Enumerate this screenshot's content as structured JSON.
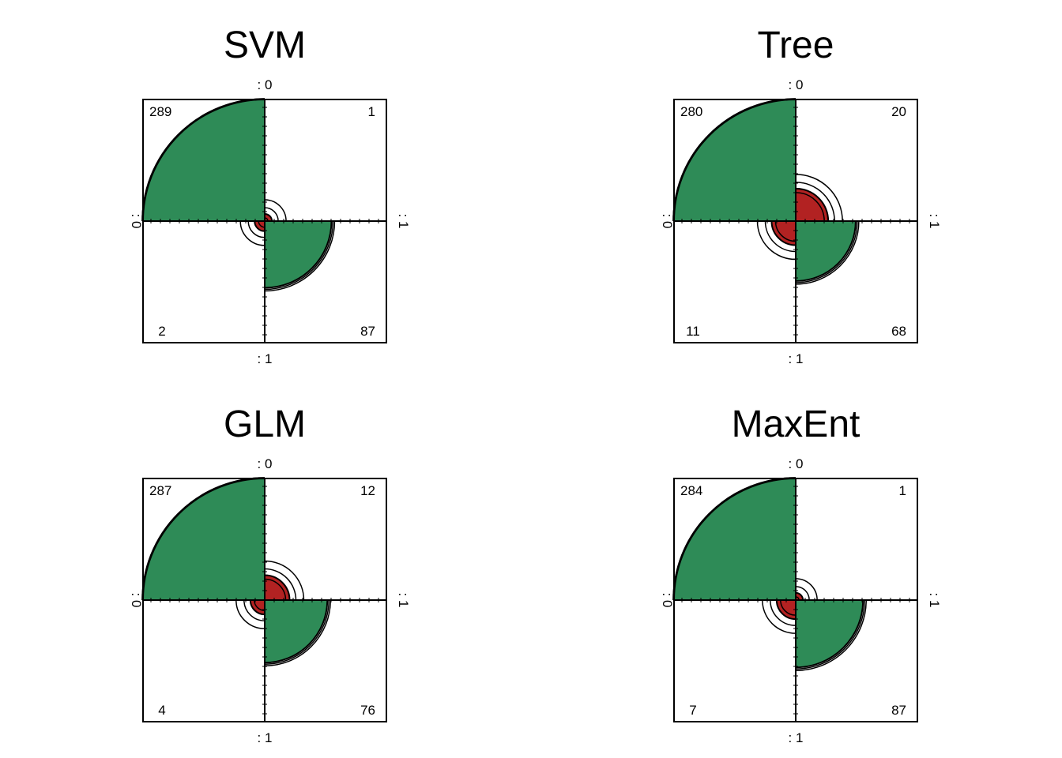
{
  "colors": {
    "correct": "#2e8b57",
    "incorrect": "#b22222",
    "outline": "#000000"
  },
  "chart_data": [
    {
      "type": "fourfold",
      "title": "SVM",
      "labels": {
        "top": ": 0",
        "bottom": ": 1",
        "left": ": 0",
        "right": ": 1"
      },
      "counts": [
        289,
        1,
        2,
        87
      ],
      "grid": false
    },
    {
      "type": "fourfold",
      "title": "Tree",
      "labels": {
        "top": ": 0",
        "bottom": ": 1",
        "left": ": 0",
        "right": ": 1"
      },
      "counts": [
        280,
        20,
        11,
        68
      ],
      "grid": false
    },
    {
      "type": "fourfold",
      "title": "GLM",
      "labels": {
        "top": ": 0",
        "bottom": ": 1",
        "left": ": 0",
        "right": ": 1"
      },
      "counts": [
        287,
        12,
        4,
        76
      ],
      "grid": false
    },
    {
      "type": "fourfold",
      "title": "MaxEnt",
      "labels": {
        "top": ": 0",
        "bottom": ": 1",
        "left": ": 0",
        "right": ": 1"
      },
      "counts": [
        284,
        1,
        7,
        87
      ],
      "grid": false
    }
  ]
}
